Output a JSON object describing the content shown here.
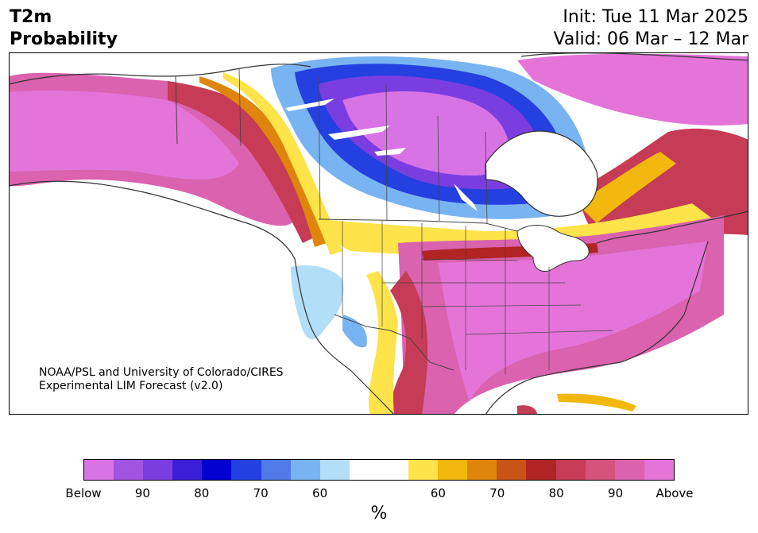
{
  "header": {
    "title_line1": "T2m",
    "title_line2": "Probability",
    "init": "Init: Tue 11 Mar 2025",
    "valid": "Valid: 06 Mar – 12 Mar"
  },
  "credit": {
    "line1": "NOAA/PSL and University of Colorado/CIRES",
    "line2": "Experimental LIM Forecast (v2.0)"
  },
  "map": {
    "region": "North America",
    "pattern": "below-normal probability over central Canada, above-normal over Alaska, eastern US, Mexico, Greenland"
  },
  "colorbar": {
    "colors": [
      "#d873e6",
      "#a054e0",
      "#7a3ee0",
      "#3c1ed6",
      "#0000d0",
      "#2440e0",
      "#4f7ae8",
      "#79b4f2",
      "#b2def8",
      "#ffffff",
      "#ffffff",
      "#fee34a",
      "#f2b80e",
      "#e0850c",
      "#c85417",
      "#b02424",
      "#c63b55",
      "#d4527c",
      "#da62ae",
      "#e474d8"
    ],
    "labels": [
      "Below",
      "90",
      "80",
      "70",
      "60",
      "60",
      "70",
      "80",
      "90",
      "Above"
    ],
    "unit": "%"
  }
}
